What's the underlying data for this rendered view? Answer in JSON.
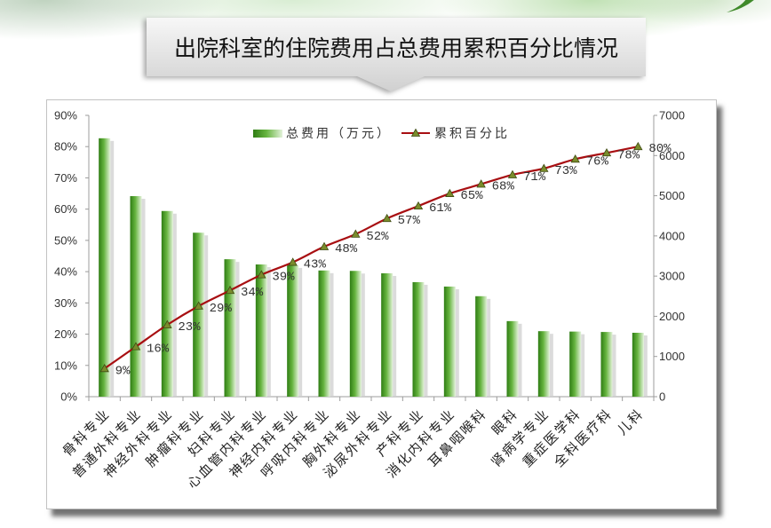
{
  "colors": {
    "bar_dark": "#2f7d14",
    "bar_mid": "#66b43f",
    "bar_light": "#e3f2da",
    "bar_shadow": "#cfcfcf",
    "line": "#a80f12",
    "marker_fill": "#7a8c2c",
    "marker_stroke": "#3e4a12",
    "axis": "#9c9c9c",
    "text": "#333333",
    "leaf": "#3f8a2a"
  },
  "chart_data": {
    "type": "bar",
    "title": "出院科室的住院费用占总费用累积百分比情况",
    "categories": [
      "骨科专业",
      "普通外科专业",
      "神经外科专业",
      "肿瘤科专业",
      "妇科专业",
      "心血管内科专业",
      "神经内科专业",
      "呼吸内科专业",
      "胸外科专业",
      "泌尿外科专业",
      "产科专业",
      "消化内科专业",
      "耳鼻咽喉科",
      "眼科",
      "肾病学专业",
      "重症医学科",
      "全科医疗科",
      "儿科"
    ],
    "series": [
      {
        "name": "总费用（万元）",
        "type": "bar",
        "axis": "right",
        "values": [
          6430,
          4990,
          4620,
          4080,
          3420,
          3290,
          3270,
          3140,
          3130,
          3070,
          2850,
          2740,
          2500,
          1880,
          1630,
          1620,
          1610,
          1590
        ]
      },
      {
        "name": "累积百分比",
        "type": "line",
        "axis": "left",
        "values": [
          9,
          16,
          23,
          29,
          34,
          39,
          43,
          48,
          52,
          57,
          61,
          65,
          68,
          71,
          73,
          76,
          78,
          80
        ],
        "data_labels": [
          "9%",
          "16%",
          "23%",
          "29%",
          "34%",
          "39%",
          "43%",
          "48%",
          "52%",
          "57%",
          "61%",
          "65%",
          "68%",
          "71%",
          "73%",
          "76%",
          "78%",
          "80%"
        ]
      }
    ],
    "y_left": {
      "min": 0,
      "max": 90,
      "step": 10,
      "tick_labels": [
        "0%",
        "10%",
        "20%",
        "30%",
        "40%",
        "50%",
        "60%",
        "70%",
        "80%",
        "90%"
      ]
    },
    "y_right": {
      "min": 0,
      "max": 7000,
      "step": 1000,
      "tick_labels": [
        "0",
        "1000",
        "2000",
        "3000",
        "4000",
        "5000",
        "6000",
        "7000"
      ]
    },
    "legend": {
      "position": "top"
    },
    "grid": false
  }
}
